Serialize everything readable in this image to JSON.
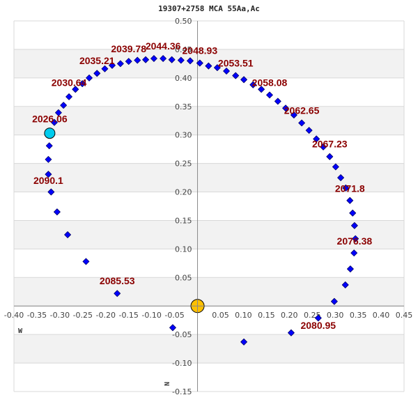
{
  "title": "19307+2758 MCA  55Aa,Ac",
  "colors": {
    "point": "#0000ff",
    "point_stroke": "#000066",
    "label": "#8b0000",
    "primary": "#ffc000",
    "current": "#00ccee",
    "band": "#f2f2f2",
    "grid": "#d8d8d8",
    "axis": "#888888"
  },
  "compass": {
    "west": "W",
    "north": "N"
  },
  "chart_data": {
    "type": "scatter",
    "title": "19307+2758 MCA  55Aa,Ac",
    "xlabel": "W",
    "ylabel": "N",
    "xlim": [
      -0.4,
      0.45
    ],
    "ylim": [
      -0.15,
      0.5
    ],
    "x_ticks": [
      "-0.40",
      "-0.35",
      "-0.30",
      "-0.25",
      "-0.20",
      "-0.15",
      "-0.10",
      "-0.05",
      "0.05",
      "0.10",
      "0.15",
      "0.20",
      "0.25",
      "0.30",
      "0.35",
      "0.40",
      "0.45"
    ],
    "y_ticks": [
      "0.50",
      "0.45",
      "0.40",
      "0.35",
      "0.30",
      "0.25",
      "0.20",
      "0.15",
      "0.10",
      "0.05",
      "-0.05",
      "-0.10",
      "-0.15"
    ],
    "grid": true,
    "primary_star": {
      "x": 0.0,
      "y": 0.0
    },
    "current_position": {
      "x": -0.322,
      "y": 0.303,
      "year": "2026.06"
    },
    "orbit_points": [
      [
        -0.312,
        0.322
      ],
      [
        -0.303,
        0.339
      ],
      [
        -0.292,
        0.352
      ],
      [
        -0.28,
        0.367
      ],
      [
        -0.266,
        0.38
      ],
      [
        -0.251,
        0.39
      ],
      [
        -0.236,
        0.4
      ],
      [
        -0.219,
        0.408
      ],
      [
        -0.202,
        0.416
      ],
      [
        -0.186,
        0.422
      ],
      [
        -0.168,
        0.425
      ],
      [
        -0.15,
        0.429
      ],
      [
        -0.131,
        0.431
      ],
      [
        -0.113,
        0.432
      ],
      [
        -0.095,
        0.434
      ],
      [
        -0.075,
        0.434
      ],
      [
        -0.056,
        0.432
      ],
      [
        -0.036,
        0.431
      ],
      [
        -0.016,
        0.43
      ],
      [
        0.005,
        0.426
      ],
      [
        0.024,
        0.421
      ],
      [
        0.043,
        0.418
      ],
      [
        0.063,
        0.412
      ],
      [
        0.083,
        0.404
      ],
      [
        0.101,
        0.397
      ],
      [
        0.121,
        0.388
      ],
      [
        0.139,
        0.38
      ],
      [
        0.157,
        0.37
      ],
      [
        0.175,
        0.359
      ],
      [
        0.192,
        0.347
      ],
      [
        0.21,
        0.335
      ],
      [
        0.227,
        0.321
      ],
      [
        0.243,
        0.308
      ],
      [
        0.259,
        0.293
      ],
      [
        0.274,
        0.279
      ],
      [
        0.288,
        0.262
      ],
      [
        0.301,
        0.244
      ],
      [
        0.312,
        0.225
      ],
      [
        0.323,
        0.207
      ],
      [
        0.332,
        0.185
      ],
      [
        0.338,
        0.163
      ],
      [
        0.342,
        0.141
      ],
      [
        0.344,
        0.118
      ],
      [
        0.341,
        0.093
      ],
      [
        0.333,
        0.065
      ],
      [
        0.322,
        0.037
      ],
      [
        0.298,
        0.008
      ],
      [
        0.263,
        -0.021
      ],
      [
        0.204,
        -0.047
      ],
      [
        0.101,
        -0.063
      ],
      [
        -0.054,
        -0.038
      ],
      [
        -0.175,
        0.022
      ],
      [
        -0.243,
        0.078
      ],
      [
        -0.283,
        0.125
      ],
      [
        -0.306,
        0.165
      ],
      [
        -0.319,
        0.2
      ],
      [
        -0.325,
        0.231
      ],
      [
        -0.325,
        0.257
      ],
      [
        -0.323,
        0.281
      ]
    ],
    "year_labels": [
      {
        "text": "2026.06",
        "x": -0.322,
        "y": 0.322
      },
      {
        "text": "2030.64",
        "x": -0.28,
        "y": 0.386
      },
      {
        "text": "2035.21",
        "x": -0.219,
        "y": 0.424
      },
      {
        "text": "2039.78",
        "x": -0.15,
        "y": 0.445
      },
      {
        "text": "2044.36",
        "x": -0.075,
        "y": 0.45
      },
      {
        "text": "2048.93",
        "x": 0.005,
        "y": 0.442
      },
      {
        "text": "2053.51",
        "x": 0.083,
        "y": 0.42
      },
      {
        "text": "2058.08",
        "x": 0.157,
        "y": 0.386
      },
      {
        "text": "2062.65",
        "x": 0.227,
        "y": 0.337
      },
      {
        "text": "2067.23",
        "x": 0.288,
        "y": 0.278
      },
      {
        "text": "2071.8",
        "x": 0.332,
        "y": 0.2
      },
      {
        "text": "2076.38",
        "x": 0.342,
        "y": 0.108
      },
      {
        "text": "2080.95",
        "x": 0.263,
        "y": -0.04
      },
      {
        "text": "2085.53",
        "x": -0.175,
        "y": 0.038
      },
      {
        "text": "2090.1",
        "x": -0.325,
        "y": 0.214
      }
    ]
  }
}
